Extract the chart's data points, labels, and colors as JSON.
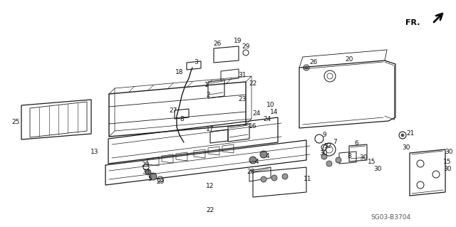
{
  "background_color": "#ffffff",
  "diagram_code": "SG03-B3704",
  "fig_width": 6.4,
  "fig_height": 3.19,
  "dpi": 100,
  "line_color": "#1a1a1a",
  "text_color": "#111111"
}
